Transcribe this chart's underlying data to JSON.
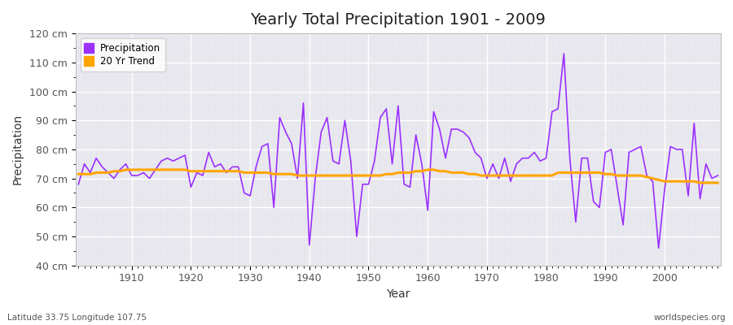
{
  "title": "Yearly Total Precipitation 1901 - 2009",
  "xlabel": "Year",
  "ylabel": "Precipitation",
  "subtitle_left": "Latitude 33.75 Longitude 107.75",
  "subtitle_right": "worldspecies.org",
  "ylim": [
    40,
    120
  ],
  "ytick_step": 10,
  "precipitation_color": "#9B30FF",
  "trend_color": "#FFA500",
  "fig_bg_color": "#FFFFFF",
  "plot_bg_color": "#E8E8EE",
  "grid_color": "#FFFFFF",
  "grid_minor_color": "#DDDDEE",
  "years": [
    1901,
    1902,
    1903,
    1904,
    1905,
    1906,
    1907,
    1908,
    1909,
    1910,
    1911,
    1912,
    1913,
    1914,
    1915,
    1916,
    1917,
    1918,
    1919,
    1920,
    1921,
    1922,
    1923,
    1924,
    1925,
    1926,
    1927,
    1928,
    1929,
    1930,
    1931,
    1932,
    1933,
    1934,
    1935,
    1936,
    1937,
    1938,
    1939,
    1940,
    1941,
    1942,
    1943,
    1944,
    1945,
    1946,
    1947,
    1948,
    1949,
    1950,
    1951,
    1952,
    1953,
    1954,
    1955,
    1956,
    1957,
    1958,
    1959,
    1960,
    1961,
    1962,
    1963,
    1964,
    1965,
    1966,
    1967,
    1968,
    1969,
    1970,
    1971,
    1972,
    1973,
    1974,
    1975,
    1976,
    1977,
    1978,
    1979,
    1980,
    1981,
    1982,
    1983,
    1984,
    1985,
    1986,
    1987,
    1988,
    1989,
    1990,
    1991,
    1992,
    1993,
    1994,
    1995,
    1996,
    1997,
    1998,
    1999,
    2000,
    2001,
    2002,
    2003,
    2004,
    2005,
    2006,
    2007,
    2008,
    2009
  ],
  "precipitation": [
    68,
    75,
    72,
    77,
    74,
    72,
    70,
    73,
    75,
    71,
    71,
    72,
    70,
    73,
    76,
    77,
    76,
    77,
    78,
    67,
    72,
    71,
    79,
    74,
    75,
    72,
    74,
    74,
    65,
    64,
    74,
    81,
    82,
    60,
    91,
    86,
    82,
    70,
    96,
    47,
    70,
    86,
    91,
    76,
    75,
    90,
    76,
    50,
    68,
    68,
    76,
    91,
    94,
    75,
    95,
    68,
    67,
    85,
    75,
    59,
    93,
    87,
    77,
    87,
    87,
    86,
    84,
    79,
    77,
    70,
    75,
    70,
    77,
    69,
    75,
    77,
    77,
    79,
    76,
    77,
    93,
    94,
    113,
    77,
    55,
    77,
    77,
    62,
    60,
    79,
    80,
    67,
    54,
    79,
    80,
    81,
    71,
    69,
    46,
    66,
    81,
    80,
    80,
    64,
    89,
    63,
    75,
    70,
    71
  ],
  "trend": [
    71.5,
    71.5,
    71.5,
    72,
    72,
    72,
    72.5,
    72.5,
    73,
    73,
    73,
    73,
    73,
    73,
    73,
    73,
    73,
    73,
    73,
    72.5,
    72.5,
    72.5,
    72.5,
    72.5,
    72.5,
    72.5,
    72.5,
    72.5,
    72,
    72,
    72,
    72,
    72,
    71.5,
    71.5,
    71.5,
    71.5,
    71,
    71,
    71,
    71,
    71,
    71,
    71,
    71,
    71,
    71,
    71,
    71,
    71,
    71,
    71,
    71.5,
    71.5,
    72,
    72,
    72,
    72.5,
    72.5,
    73,
    73,
    72.5,
    72.5,
    72,
    72,
    72,
    71.5,
    71.5,
    71,
    71,
    71,
    71,
    71,
    71,
    71,
    71,
    71,
    71,
    71,
    71,
    71,
    72,
    72,
    72,
    72,
    72,
    72,
    72,
    72,
    71.5,
    71.5,
    71,
    71,
    71,
    71,
    71,
    70.5,
    70,
    69.5,
    69,
    69,
    69,
    69,
    69,
    69,
    68.5,
    68.5,
    68.5,
    68.5
  ]
}
